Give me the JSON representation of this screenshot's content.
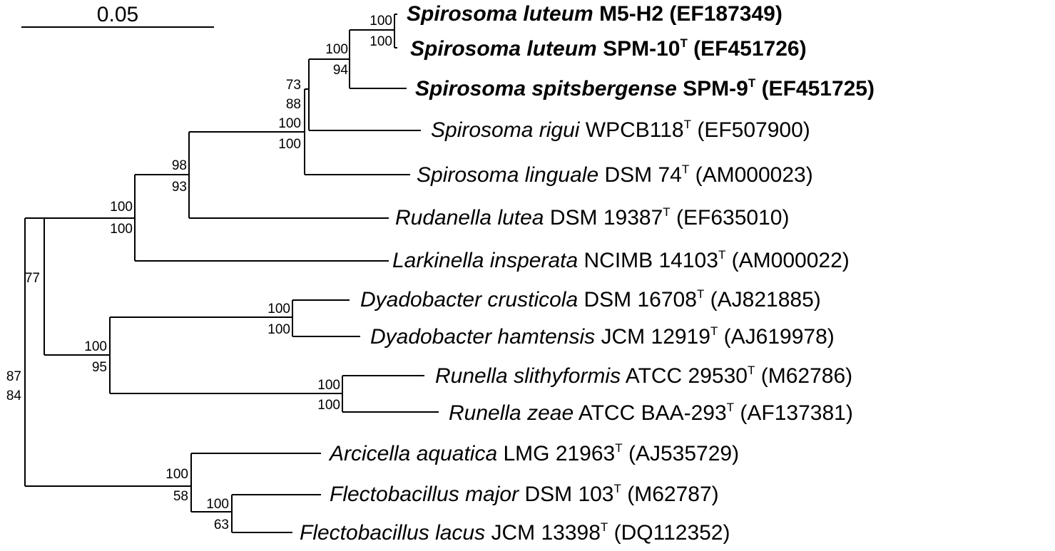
{
  "scale_bar": {
    "label": "0.05"
  },
  "taxa": [
    {
      "id": "t1",
      "species": "Spirosoma luteum",
      "strain": "M5-H2",
      "type_strain": "",
      "accession": "(EF187349)",
      "bold": true
    },
    {
      "id": "t2",
      "species": "Spirosoma luteum",
      "strain": "SPM-10",
      "type_strain": "T",
      "accession": "(EF451726)",
      "bold": true
    },
    {
      "id": "t3",
      "species": "Spirosoma spitsbergense",
      "strain": "SPM-9",
      "type_strain": "T",
      "accession": "(EF451725)",
      "bold": true
    },
    {
      "id": "t4",
      "species": "Spirosoma rigui",
      "strain": "WPCB118",
      "type_strain": "T",
      "accession": "(EF507900)",
      "bold": false
    },
    {
      "id": "t5",
      "species": "Spirosoma linguale",
      "strain": "DSM 74",
      "type_strain": "T",
      "accession": "(AM000023)",
      "bold": false
    },
    {
      "id": "t6",
      "species": "Rudanella lutea",
      "strain": "DSM 19387",
      "type_strain": "T",
      "accession": "(EF635010)",
      "bold": false
    },
    {
      "id": "t7",
      "species": "Larkinella insperata",
      "strain": "NCIMB 14103",
      "type_strain": "T",
      "accession": "(AM000022)",
      "bold": false
    },
    {
      "id": "t8",
      "species": "Dyadobacter crusticola",
      "strain": "DSM 16708",
      "type_strain": "T",
      "accession": "(AJ821885)",
      "bold": false
    },
    {
      "id": "t9",
      "species": "Dyadobacter hamtensis",
      "strain": "JCM 12919",
      "type_strain": "T",
      "accession": "(AJ619978)",
      "bold": false
    },
    {
      "id": "t10",
      "species": "Runella slithyformis",
      "strain": "ATCC 29530",
      "type_strain": "T",
      "accession": "(M62786)",
      "bold": false
    },
    {
      "id": "t11",
      "species": "Runella zeae",
      "strain": "ATCC BAA-293",
      "type_strain": "T",
      "accession": "(AF137381)",
      "bold": false
    },
    {
      "id": "t12",
      "species": "Arcicella aquatica",
      "strain": "LMG 21963",
      "type_strain": "T",
      "accession": "(AJ535729)",
      "bold": false
    },
    {
      "id": "t13",
      "species": "Flectobacillus major",
      "strain": "DSM 103",
      "type_strain": "T",
      "accession": "(M62787)",
      "bold": false
    },
    {
      "id": "t14",
      "species": "Flectobacillus lacus",
      "strain": "JCM 13398",
      "type_strain": "T",
      "accession": "(DQ112352)",
      "bold": false
    }
  ],
  "bootstrap": {
    "luteum_pair": [
      "100",
      "100"
    ],
    "luteum_spitsbergense": [
      "100",
      "94"
    ],
    "spirosoma_core": [
      "73",
      "88",
      "100",
      "100"
    ],
    "spirosoma_rudanella": [
      "98",
      "93"
    ],
    "spirosoma_larkinella": [
      "100",
      "100"
    ],
    "spirosoma_dyadobacter": [
      "77"
    ],
    "dyadobacter": [
      "100",
      "100"
    ],
    "dyadobacter_runella": [
      "100",
      "95"
    ],
    "runella": [
      "100",
      "100"
    ],
    "root": [
      "87",
      "84"
    ],
    "arcicella_flectobacillus": [
      "100",
      "58"
    ],
    "flectobacillus": [
      "100",
      "63"
    ]
  }
}
